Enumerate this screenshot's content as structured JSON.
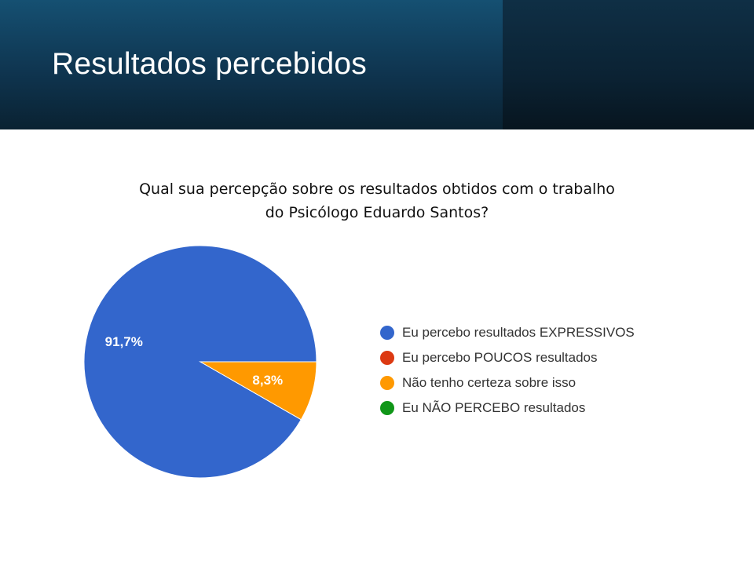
{
  "slide": {
    "title": "Resultados percebidos",
    "question_line1": "Qual sua percepção sobre os resultados obtidos com o trabalho",
    "question_line2": "do Psicólogo Eduardo Santos?"
  },
  "chart_data": {
    "type": "pie",
    "legend_position": "right",
    "slices": [
      {
        "label": "Eu percebo resultados EXPRESSIVOS",
        "value": 91.7,
        "display": "91,7%",
        "color": "#3366cc"
      },
      {
        "label": "Eu percebo POUCOS resultados",
        "value": 0,
        "display": "",
        "color": "#dc3912"
      },
      {
        "label": "Não tenho certeza sobre isso",
        "value": 8.3,
        "display": "8,3%",
        "color": "#ff9900"
      },
      {
        "label": "Eu NÃO PERCEBO resultados",
        "value": 0,
        "display": "",
        "color": "#109618"
      }
    ]
  }
}
